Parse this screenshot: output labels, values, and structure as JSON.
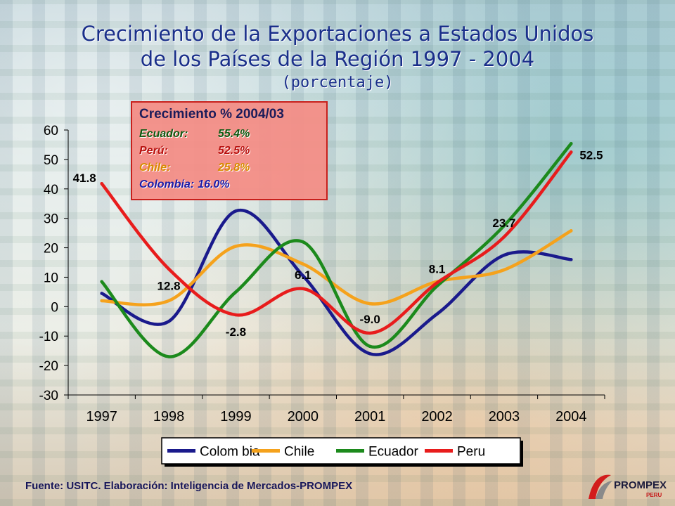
{
  "title_line1": "Crecimiento de la Exportaciones a Estados Unidos",
  "title_line2": "de los Países de la Región 1997 - 2004",
  "subtitle": "(porcentaje)",
  "infobox": {
    "title": "Crecimiento % 2004/03",
    "rows": [
      {
        "name": "Ecuador:",
        "value": "55.4%",
        "color": "#0f5a12"
      },
      {
        "name": "Perú:",
        "value": "52.5%",
        "color": "#b8100e"
      },
      {
        "name": "Chile:",
        "value": "25.8%",
        "color": "#d98a00"
      },
      {
        "name": "Colombia:",
        "value": "16.0%",
        "color": "#1a1aa8"
      }
    ]
  },
  "source": "Fuente: USITC.  Elaboración: Inteligencia de Mercados-PROMPEX",
  "logo": {
    "text": "PROMPEX",
    "sub": "PERU"
  },
  "chart_data": {
    "type": "line",
    "categories": [
      "1997",
      "1998",
      "1999",
      "2000",
      "2001",
      "2002",
      "2003",
      "2004"
    ],
    "ylim": [
      -30,
      60
    ],
    "yticks": [
      60,
      50,
      40,
      30,
      20,
      10,
      0,
      -10,
      -20,
      -30
    ],
    "series": [
      {
        "name": "Colom bia",
        "color": "#1a1a8c",
        "values": [
          4.5,
          -5.0,
          32.5,
          10.5,
          -16.0,
          -2.5,
          17.5,
          16.0
        ]
      },
      {
        "name": "Chile",
        "color": "#f5a21c",
        "values": [
          2.0,
          2.0,
          20.5,
          14.5,
          1.0,
          8.5,
          12.5,
          25.8
        ]
      },
      {
        "name": "Ecuador",
        "color": "#1c8a1c",
        "values": [
          8.5,
          -17.0,
          5.0,
          22.0,
          -13.5,
          7.0,
          27.5,
          55.4
        ]
      },
      {
        "name": "Peru",
        "color": "#e81c1c",
        "values": [
          41.8,
          12.8,
          -2.8,
          6.1,
          -9.0,
          8.1,
          23.7,
          52.5
        ]
      }
    ],
    "data_labels": [
      {
        "text": "41.8",
        "x": "1997",
        "y": 41.8,
        "place": "left"
      },
      {
        "text": "12.8",
        "x": "1998",
        "y": 12.8,
        "place": "below"
      },
      {
        "text": "-2.8",
        "x": "1999",
        "y": -2.8,
        "place": "below"
      },
      {
        "text": "6.1",
        "x": "2000",
        "y": 6.1,
        "place": "above"
      },
      {
        "text": "-9.0",
        "x": "2001",
        "y": -9.0,
        "place": "above"
      },
      {
        "text": "8.1",
        "x": "2002",
        "y": 8.1,
        "place": "above"
      },
      {
        "text": "23.7",
        "x": "2003",
        "y": 23.7,
        "place": "above"
      },
      {
        "text": "52.5",
        "x": "2004",
        "y": 52.5,
        "place": "right"
      }
    ],
    "legend_position": "bottom"
  }
}
